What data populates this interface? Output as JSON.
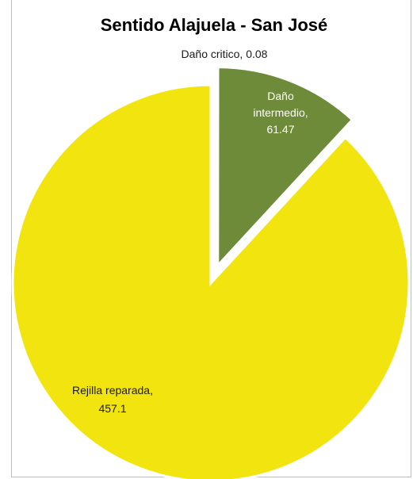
{
  "chart_data": {
    "type": "pie",
    "title": "Sentido Alajuela - San José",
    "slices": [
      {
        "label": "Daño critico",
        "value": 0.08,
        "display": "Daño critico, 0.08",
        "color": "#5f8a2c",
        "exploded": false
      },
      {
        "label": "Daño intermedio",
        "value": 61.47,
        "display_lines": [
          "Daño",
          "intermedio,",
          "61.47"
        ],
        "color": "#6e8b3a",
        "exploded": true
      },
      {
        "label": "Rejilla reparada",
        "value": 457.1,
        "display_lines": [
          "Rejilla reparada,",
          "457.1"
        ],
        "color": "#f2e40f",
        "exploded": false
      }
    ],
    "legend": "none",
    "grid": false
  }
}
